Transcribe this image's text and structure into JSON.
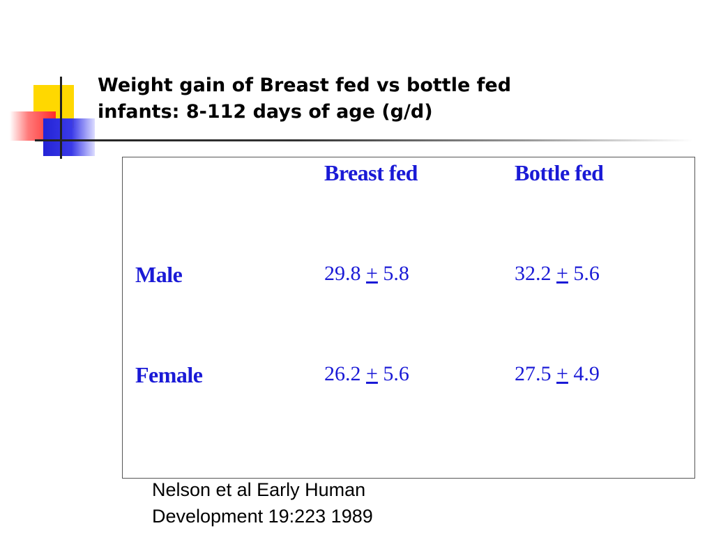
{
  "slide": {
    "title_line1": "Weight gain of Breast fed vs bottle fed",
    "title_line2": "infants: 8-112 days of age (g/d)"
  },
  "table": {
    "headers": [
      "Breast fed",
      "Bottle fed"
    ],
    "rows": [
      {
        "label": "Male",
        "breast_fed": {
          "mean": "29.8",
          "pm": "+",
          "sd": "5.8"
        },
        "bottle_fed": {
          "mean": "32.2",
          "pm": "+",
          "sd": "5.6"
        }
      },
      {
        "label": "Female",
        "breast_fed": {
          "mean": "26.2",
          "pm": "+",
          "sd": "5.6"
        },
        "bottle_fed": {
          "mean": "27.5",
          "pm": "+",
          "sd": "4.9"
        }
      }
    ]
  },
  "citation": {
    "line1": "Nelson et al Early Human",
    "line2": "Development 19:223 1989"
  },
  "colors": {
    "table_text": "#1a1ad6",
    "accent_yellow": "#ffd800",
    "accent_red": "#ff2a2a",
    "accent_blue": "#2424d6"
  }
}
